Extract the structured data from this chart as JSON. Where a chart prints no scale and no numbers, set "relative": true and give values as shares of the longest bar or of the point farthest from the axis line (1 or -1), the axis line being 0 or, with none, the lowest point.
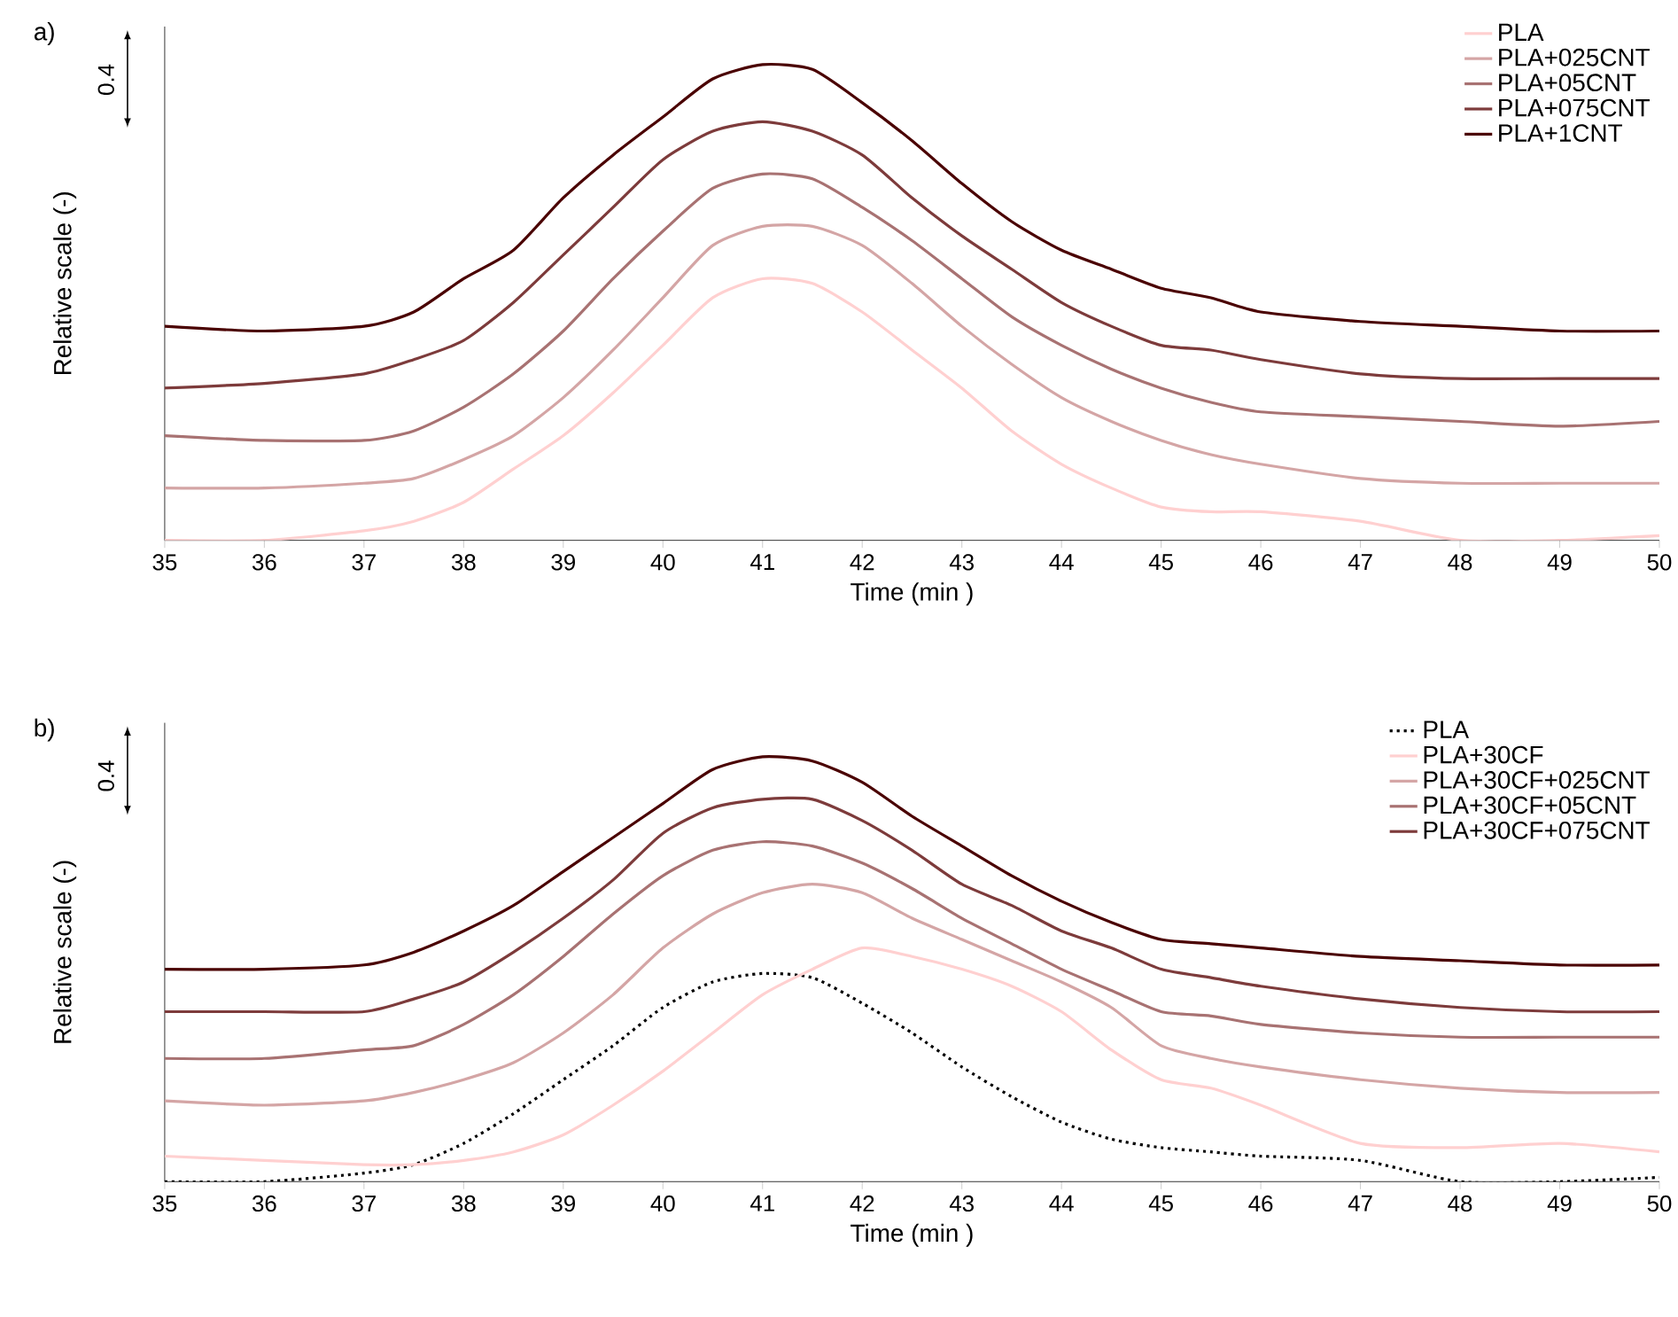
{
  "chart_data": [
    {
      "type": "line",
      "title": "a)",
      "xlabel": "Time (min )",
      "ylabel": "Relative scale (-)",
      "relative": true,
      "legend": "top right",
      "annotations": [
        "0.4"
      ],
      "xlim": [
        35,
        50
      ],
      "xticks": [
        35,
        36,
        37,
        38,
        39,
        40,
        41,
        42,
        43,
        44,
        45,
        46,
        47,
        48,
        49,
        50
      ],
      "x": [
        35,
        36,
        37,
        37.5,
        38,
        38.5,
        39,
        39.5,
        40,
        40.5,
        41,
        41.5,
        42,
        42.5,
        43,
        43.5,
        44,
        44.5,
        45,
        45.5,
        46,
        47,
        48,
        49,
        50
      ],
      "series": [
        {
          "name": "PLA",
          "color": "#ffd0d0",
          "values": [
            0,
            0,
            0.02,
            0.04,
            0.08,
            0.15,
            0.22,
            0.31,
            0.41,
            0.51,
            0.55,
            0.54,
            0.48,
            0.4,
            0.32,
            0.23,
            0.16,
            0.11,
            0.07,
            0.06,
            0.06,
            0.04,
            0,
            0,
            0.01
          ]
        },
        {
          "name": "PLA+025CNT",
          "color": "#d4a5a5",
          "values": [
            0.11,
            0.11,
            0.12,
            0.13,
            0.17,
            0.22,
            0.3,
            0.4,
            0.51,
            0.62,
            0.66,
            0.66,
            0.62,
            0.54,
            0.45,
            0.37,
            0.3,
            0.25,
            0.21,
            0.18,
            0.16,
            0.13,
            0.12,
            0.12,
            0.12
          ]
        },
        {
          "name": "PLA+05CNT",
          "color": "#a87272",
          "values": [
            0.22,
            0.21,
            0.21,
            0.23,
            0.28,
            0.35,
            0.44,
            0.55,
            0.65,
            0.74,
            0.77,
            0.76,
            0.7,
            0.63,
            0.55,
            0.47,
            0.41,
            0.36,
            0.32,
            0.29,
            0.27,
            0.26,
            0.25,
            0.24,
            0.25
          ]
        },
        {
          "name": "PLA+075CNT",
          "color": "#7d3b3b",
          "values": [
            0.32,
            0.33,
            0.35,
            0.38,
            0.42,
            0.5,
            0.6,
            0.7,
            0.8,
            0.86,
            0.88,
            0.86,
            0.81,
            0.72,
            0.64,
            0.57,
            0.5,
            0.45,
            0.41,
            0.4,
            0.38,
            0.35,
            0.34,
            0.34,
            0.34
          ]
        },
        {
          "name": "PLA+1CNT",
          "color": "#4a0000",
          "values": [
            0.45,
            0.44,
            0.45,
            0.48,
            0.55,
            0.61,
            0.72,
            0.81,
            0.89,
            0.97,
            1,
            0.99,
            0.92,
            0.84,
            0.75,
            0.67,
            0.61,
            0.57,
            0.53,
            0.51,
            0.48,
            0.46,
            0.45,
            0.44,
            0.44
          ]
        }
      ]
    },
    {
      "type": "line",
      "title": "b)",
      "xlabel": "Time (min )",
      "ylabel": "Relative scale (-)",
      "relative": true,
      "legend": "top right",
      "annotations": [
        "0.4"
      ],
      "xlim": [
        35,
        50
      ],
      "xticks": [
        35,
        36,
        37,
        38,
        39,
        40,
        41,
        42,
        43,
        44,
        45,
        46,
        47,
        48,
        49,
        50
      ],
      "x": [
        35,
        36,
        37,
        37.5,
        38,
        38.5,
        39,
        39.5,
        40,
        40.5,
        41,
        41.5,
        42,
        42.5,
        43,
        43.5,
        44,
        44.5,
        45,
        45.5,
        46,
        47,
        48,
        49,
        50
      ],
      "series": [
        {
          "name": "PLA",
          "color": "#000000",
          "line_style": "dotted",
          "values": [
            0,
            0,
            0.02,
            0.04,
            0.09,
            0.16,
            0.24,
            0.32,
            0.41,
            0.47,
            0.49,
            0.48,
            0.42,
            0.35,
            0.27,
            0.2,
            0.14,
            0.1,
            0.08,
            0.07,
            0.06,
            0.05,
            0,
            0,
            0.01
          ]
        },
        {
          "name": "PLA+30CF",
          "color": "#ffd0d0",
          "values": [
            0.06,
            0.05,
            0.04,
            0.04,
            0.05,
            0.07,
            0.11,
            0.18,
            0.26,
            0.35,
            0.44,
            0.5,
            0.55,
            0.53,
            0.5,
            0.46,
            0.4,
            0.31,
            0.24,
            0.22,
            0.18,
            0.09,
            0.08,
            0.09,
            0.07
          ]
        },
        {
          "name": "PLA+30CF+025CNT",
          "color": "#d4a5a5",
          "values": [
            0.19,
            0.18,
            0.19,
            0.21,
            0.24,
            0.28,
            0.35,
            0.44,
            0.55,
            0.63,
            0.68,
            0.7,
            0.68,
            0.62,
            0.57,
            0.52,
            0.47,
            0.41,
            0.32,
            0.29,
            0.27,
            0.24,
            0.22,
            0.21,
            0.21
          ]
        },
        {
          "name": "PLA+30CF+05CNT",
          "color": "#a87272",
          "values": [
            0.29,
            0.29,
            0.31,
            0.32,
            0.37,
            0.44,
            0.53,
            0.63,
            0.72,
            0.78,
            0.8,
            0.79,
            0.75,
            0.69,
            0.62,
            0.56,
            0.5,
            0.45,
            0.4,
            0.39,
            0.37,
            0.35,
            0.34,
            0.34,
            0.34
          ]
        },
        {
          "name": "PLA+30CF+075CNT",
          "color": "#7d3b3b",
          "values": [
            0.4,
            0.4,
            0.4,
            0.43,
            0.47,
            0.54,
            0.62,
            0.71,
            0.82,
            0.88,
            0.9,
            0.9,
            0.85,
            0.78,
            0.7,
            0.65,
            0.59,
            0.55,
            0.5,
            0.48,
            0.46,
            0.43,
            0.41,
            0.4,
            0.4
          ]
        },
        {
          "color": "#4a0000",
          "values": [
            0.5,
            0.5,
            0.51,
            0.54,
            0.59,
            0.65,
            0.73,
            0.81,
            0.89,
            0.97,
            1,
            0.99,
            0.94,
            0.86,
            0.79,
            0.72,
            0.66,
            0.61,
            0.57,
            0.56,
            0.55,
            0.53,
            0.52,
            0.51,
            0.51
          ]
        }
      ]
    }
  ]
}
